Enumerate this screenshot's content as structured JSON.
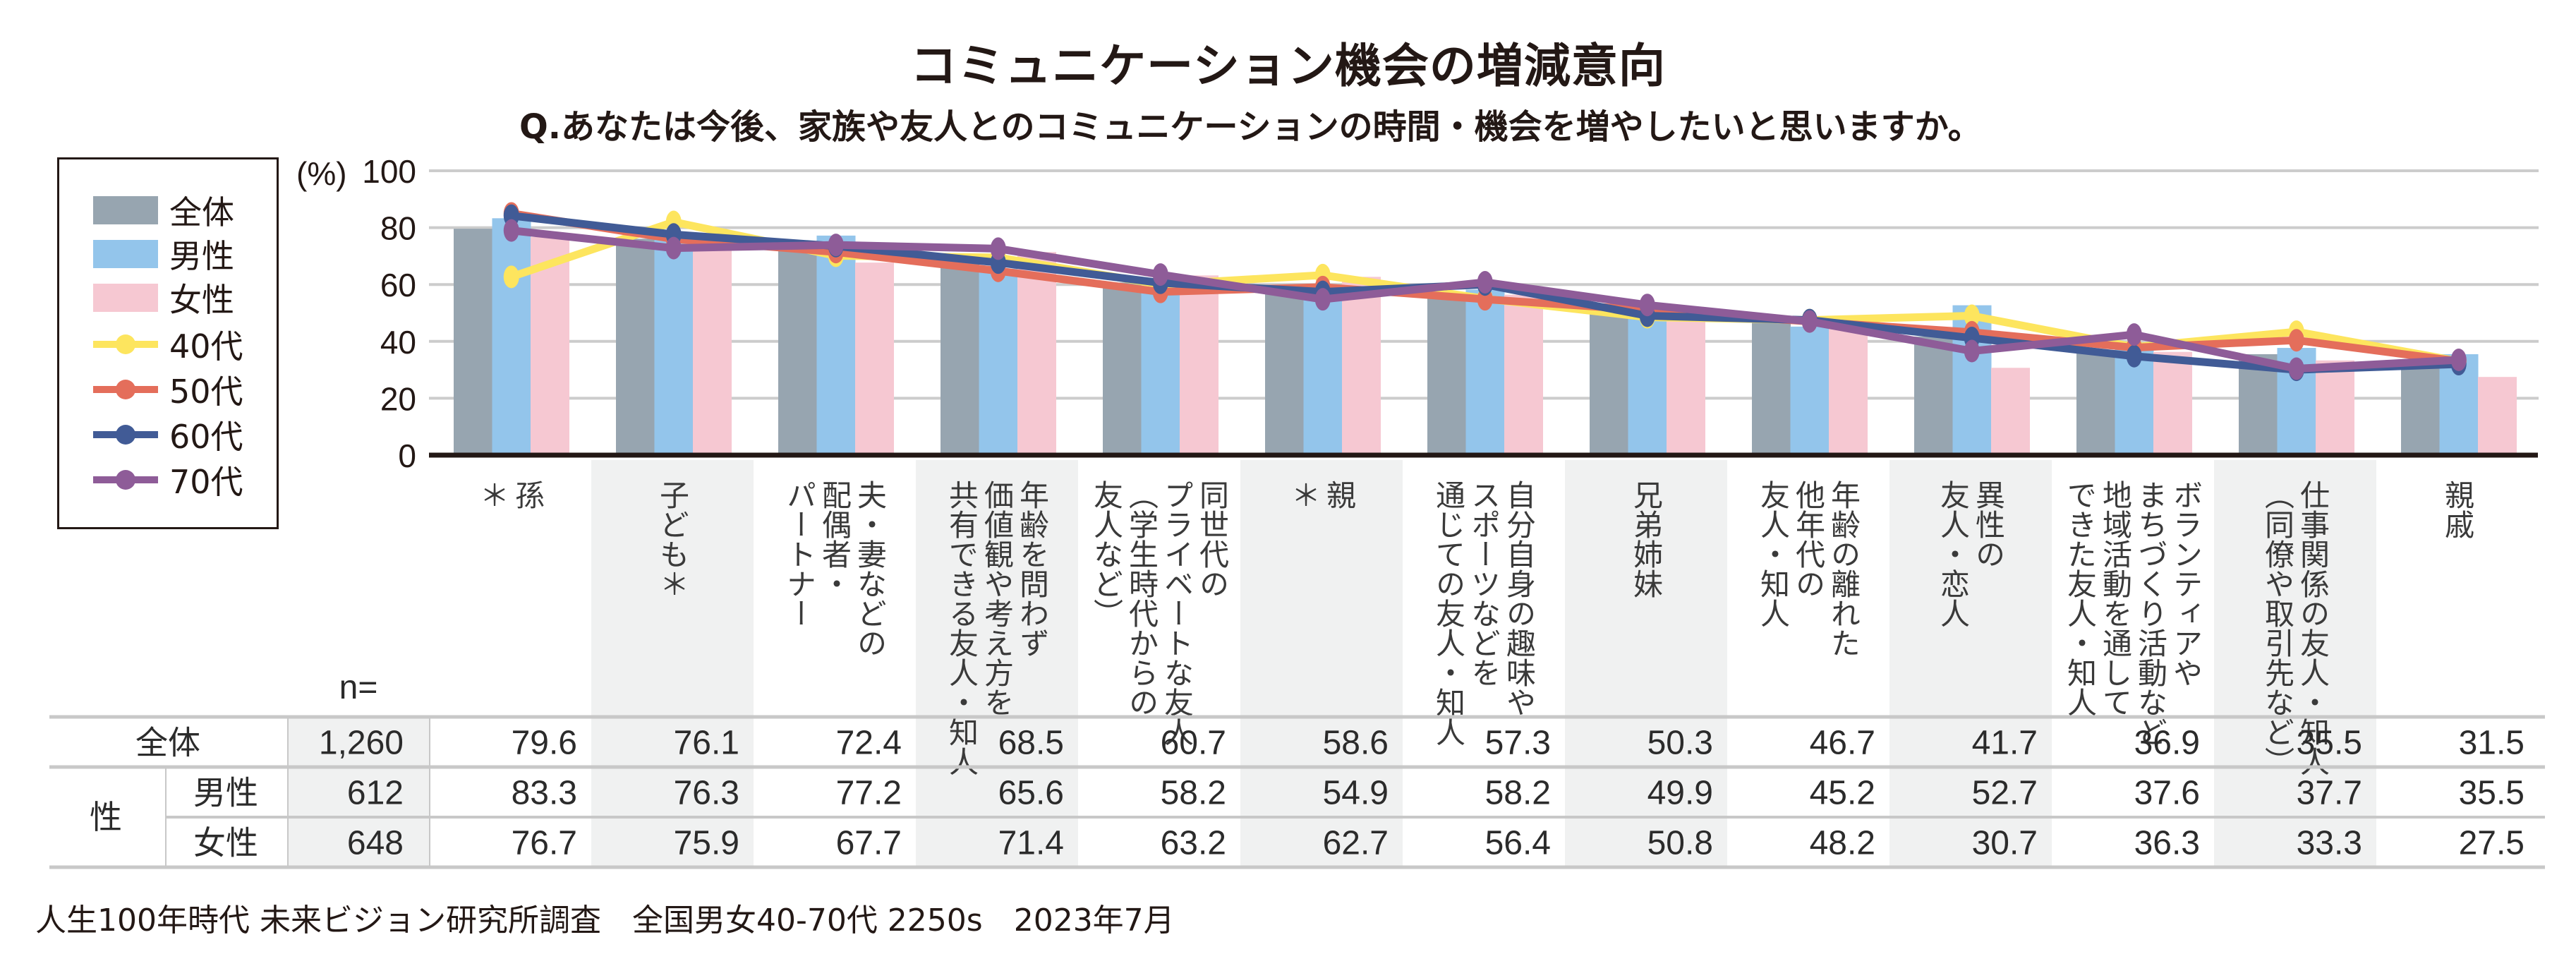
{
  "chart_data": {
    "type": "bar",
    "title": "コミュニケーション機会の増減意向",
    "subtitle": "Q.あなたは今後、家族や友人とのコミュニケーションの時間・機会を増やしたいと思いますか。",
    "ylabel": "(%)",
    "ylim": [
      0,
      100
    ],
    "yticks": [
      0,
      20,
      40,
      60,
      80,
      100
    ],
    "grid": true,
    "legend_position": "left",
    "categories": [
      [
        "孫",
        "＊"
      ],
      [
        "子ども＊"
      ],
      [
        "夫・妻などの",
        "配偶者・",
        "パートナー"
      ],
      [
        "年齢を問わず",
        "価値観や考え方を",
        "共有できる友人・知人"
      ],
      [
        "同世代の",
        "プライベートな友人",
        "（学生時代からの",
        "友人など）"
      ],
      [
        "親",
        "＊"
      ],
      [
        "自分自身の趣味や",
        "スポーツなどを",
        "通じての友人・知人"
      ],
      [
        "兄弟姉妹"
      ],
      [
        "年齢の離れた",
        "他年代の",
        "友人・知人"
      ],
      [
        "異性の",
        "友人・恋人"
      ],
      [
        "ボランティアや",
        "まちづくり活動など",
        "地域活動を通して",
        "できた友人・知人"
      ],
      [
        "仕事関係の友人・知人",
        "（同僚や取引先など）"
      ],
      [
        "親戚"
      ]
    ],
    "bar_series": [
      {
        "name": "全体",
        "color": "#97a5b0",
        "values": [
          79.6,
          76.1,
          72.4,
          68.5,
          60.7,
          58.6,
          57.3,
          50.3,
          46.7,
          41.7,
          36.9,
          35.5,
          31.5
        ]
      },
      {
        "name": "男性",
        "color": "#93c5eb",
        "values": [
          83.3,
          76.3,
          77.2,
          65.6,
          58.2,
          54.9,
          58.2,
          49.9,
          45.2,
          52.7,
          37.6,
          37.7,
          35.5
        ]
      },
      {
        "name": "女性",
        "color": "#f6c8d2",
        "values": [
          76.7,
          75.9,
          67.7,
          71.4,
          63.2,
          62.7,
          56.4,
          50.8,
          48.2,
          30.7,
          36.3,
          33.3,
          27.5
        ]
      }
    ],
    "line_series": [
      {
        "name": "40代",
        "color": "#fde55e",
        "values": [
          62.7,
          82.0,
          70.1,
          69.5,
          60.0,
          63.3,
          55.0,
          48.5,
          47.5,
          49.0,
          38.0,
          43.4,
          33.0
        ]
      },
      {
        "name": "50代",
        "color": "#e46e5b",
        "values": [
          85.0,
          76.0,
          71.4,
          64.8,
          57.4,
          59.1,
          54.8,
          51.0,
          47.0,
          43.2,
          37.8,
          40.4,
          33.0
        ]
      },
      {
        "name": "60代",
        "color": "#415b96",
        "values": [
          84.2,
          77.6,
          73.5,
          67.7,
          60.6,
          57.4,
          60.0,
          49.0,
          47.5,
          41.2,
          34.8,
          30.0,
          32.0
        ]
      },
      {
        "name": "70代",
        "color": "#8e5c98",
        "values": [
          79.0,
          72.8,
          73.9,
          72.6,
          63.5,
          54.8,
          60.8,
          52.8,
          47.0,
          36.6,
          42.4,
          30.4,
          33.5
        ]
      }
    ]
  },
  "table": {
    "n_label": "n=",
    "group_label": "性",
    "rows": [
      {
        "label": "全体",
        "n": "1,260",
        "values": [
          "79.6",
          "76.1",
          "72.4",
          "68.5",
          "60.7",
          "58.6",
          "57.3",
          "50.3",
          "46.7",
          "41.7",
          "36.9",
          "35.5",
          "31.5"
        ]
      },
      {
        "label": "男性",
        "n": "612",
        "values": [
          "83.3",
          "76.3",
          "77.2",
          "65.6",
          "58.2",
          "54.9",
          "58.2",
          "49.9",
          "45.2",
          "52.7",
          "37.6",
          "37.7",
          "35.5"
        ]
      },
      {
        "label": "女性",
        "n": "648",
        "values": [
          "76.7",
          "75.9",
          "67.7",
          "71.4",
          "63.2",
          "62.7",
          "56.4",
          "50.8",
          "48.2",
          "30.7",
          "36.3",
          "33.3",
          "27.5"
        ]
      }
    ]
  },
  "colors": {
    "text": "#231815",
    "grid": "#cccccc",
    "column_shade": "#f0f1f1",
    "table_rule": "#c8c8c8"
  },
  "footer": "人生100年時代 未来ビジョン研究所調査　全国男女40-70代 2250s　2023年7月"
}
